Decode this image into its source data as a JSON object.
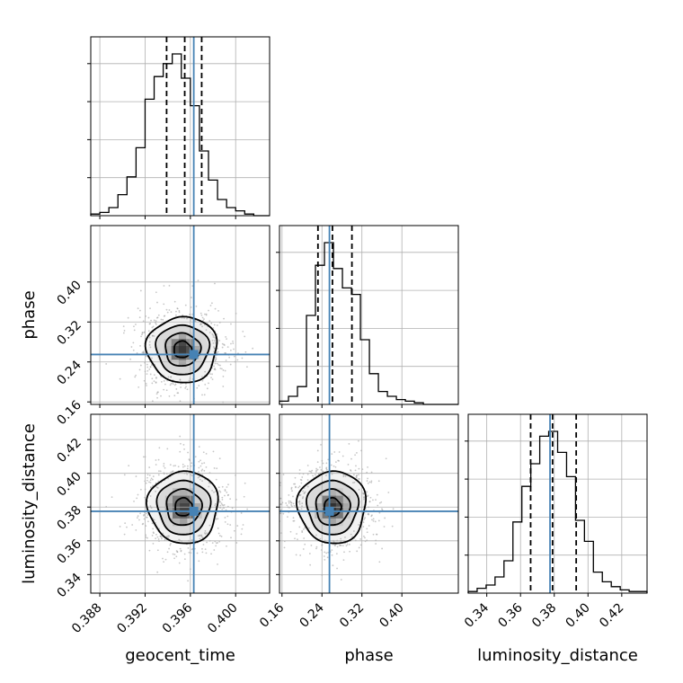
{
  "chart_data": {
    "type": "corner",
    "parameters": [
      "geocent_time",
      "phase",
      "luminosity_distance"
    ],
    "truths": {
      "geocent_time": 0.3963,
      "phase": 0.255,
      "luminosity_distance": 0.3775
    },
    "quantiles": {
      "geocent_time": [
        0.3939,
        0.3955,
        0.397
      ],
      "phase": [
        0.232,
        0.261,
        0.3
      ],
      "luminosity_distance": [
        0.366,
        0.379,
        0.393
      ]
    },
    "ranges": {
      "geocent_time": [
        0.3872,
        0.403
      ],
      "phase": [
        0.155,
        0.513
      ],
      "luminosity_distance": [
        0.329,
        0.435
      ]
    },
    "tick_labels": {
      "geocent_time": [
        "0.388",
        "0.392",
        "0.396",
        "0.400"
      ],
      "phase": [
        "0.16",
        "0.24",
        "0.32",
        "0.40"
      ],
      "luminosity_distance": [
        "0.34",
        "0.36",
        "0.38",
        "0.40",
        "0.42"
      ]
    },
    "histograms": {
      "geocent_time": {
        "edges": [
          0.3872,
          0.388,
          0.3888,
          0.3896,
          0.3904,
          0.3912,
          0.392,
          0.3928,
          0.3936,
          0.3944,
          0.3952,
          0.396,
          0.3968,
          0.3976,
          0.3984,
          0.3992,
          0.4,
          0.4008,
          0.4016,
          0.4024,
          0.403
        ],
        "counts": [
          0.01,
          0.02,
          0.05,
          0.13,
          0.24,
          0.42,
          0.72,
          0.86,
          0.94,
          1.0,
          0.85,
          0.68,
          0.4,
          0.22,
          0.1,
          0.05,
          0.03,
          0.01,
          0.0,
          0.0
        ]
      },
      "phase": {
        "edges": [
          0.155,
          0.173,
          0.191,
          0.209,
          0.227,
          0.245,
          0.263,
          0.281,
          0.299,
          0.317,
          0.335,
          0.353,
          0.371,
          0.389,
          0.407,
          0.425,
          0.443,
          0.461,
          0.479,
          0.497,
          0.513
        ],
        "counts": [
          0.02,
          0.05,
          0.11,
          0.55,
          0.86,
          1.0,
          0.84,
          0.72,
          0.68,
          0.4,
          0.19,
          0.08,
          0.05,
          0.03,
          0.02,
          0.01,
          0.0,
          0.0,
          0.0,
          0.0
        ]
      },
      "luminosity_distance": {
        "edges": [
          0.329,
          0.3343,
          0.3396,
          0.3449,
          0.3502,
          0.3555,
          0.3608,
          0.3661,
          0.3714,
          0.3767,
          0.382,
          0.3873,
          0.3926,
          0.3979,
          0.4032,
          0.4085,
          0.4138,
          0.4191,
          0.4244,
          0.4297,
          0.435
        ],
        "counts": [
          0.01,
          0.03,
          0.05,
          0.1,
          0.2,
          0.44,
          0.66,
          0.8,
          0.97,
          1.0,
          0.87,
          0.72,
          0.45,
          0.32,
          0.13,
          0.07,
          0.04,
          0.02,
          0.01,
          0.01
        ]
      }
    },
    "contour_levels": [
      "0.5-sigma",
      "1-sigma",
      "1.5-sigma",
      "2-sigma"
    ],
    "contours": {
      "phase_vs_geocent_time": {
        "center": [
          0.3953,
          0.265
        ],
        "sigma": [
          0.00155,
          0.033
        ]
      },
      "luminosity_distance_vs_geocent_time": {
        "center": [
          0.3954,
          0.38
        ],
        "sigma": [
          0.00155,
          0.0107
        ]
      },
      "luminosity_distance_vs_phase": {
        "center": [
          0.261,
          0.38
        ],
        "sigma": [
          0.034,
          0.0107
        ]
      }
    },
    "colors": {
      "truth": "#4682b4",
      "histogram": "#000000",
      "grid": "#b0b0b0",
      "scatter": "#999999"
    }
  }
}
